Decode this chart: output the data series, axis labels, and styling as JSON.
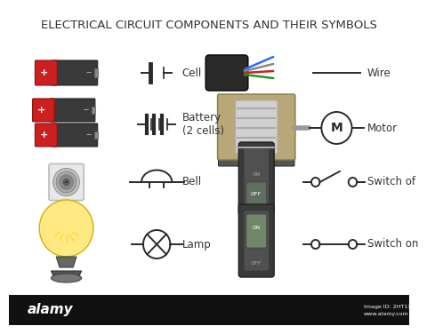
{
  "title": "ELECTRICAL CIRCUIT COMPONENTS AND THEIR SYMBOLS",
  "title_fontsize": 9.5,
  "bg_color": "#ffffff",
  "text_color": "#333333",
  "symbol_color": "#2a2a2a",
  "bottom_bar_color": "#111111",
  "bottom_text": "alamy",
  "bottom_text2": "Image ID: 2HT11J0",
  "bottom_text3": "www.alamy.com"
}
